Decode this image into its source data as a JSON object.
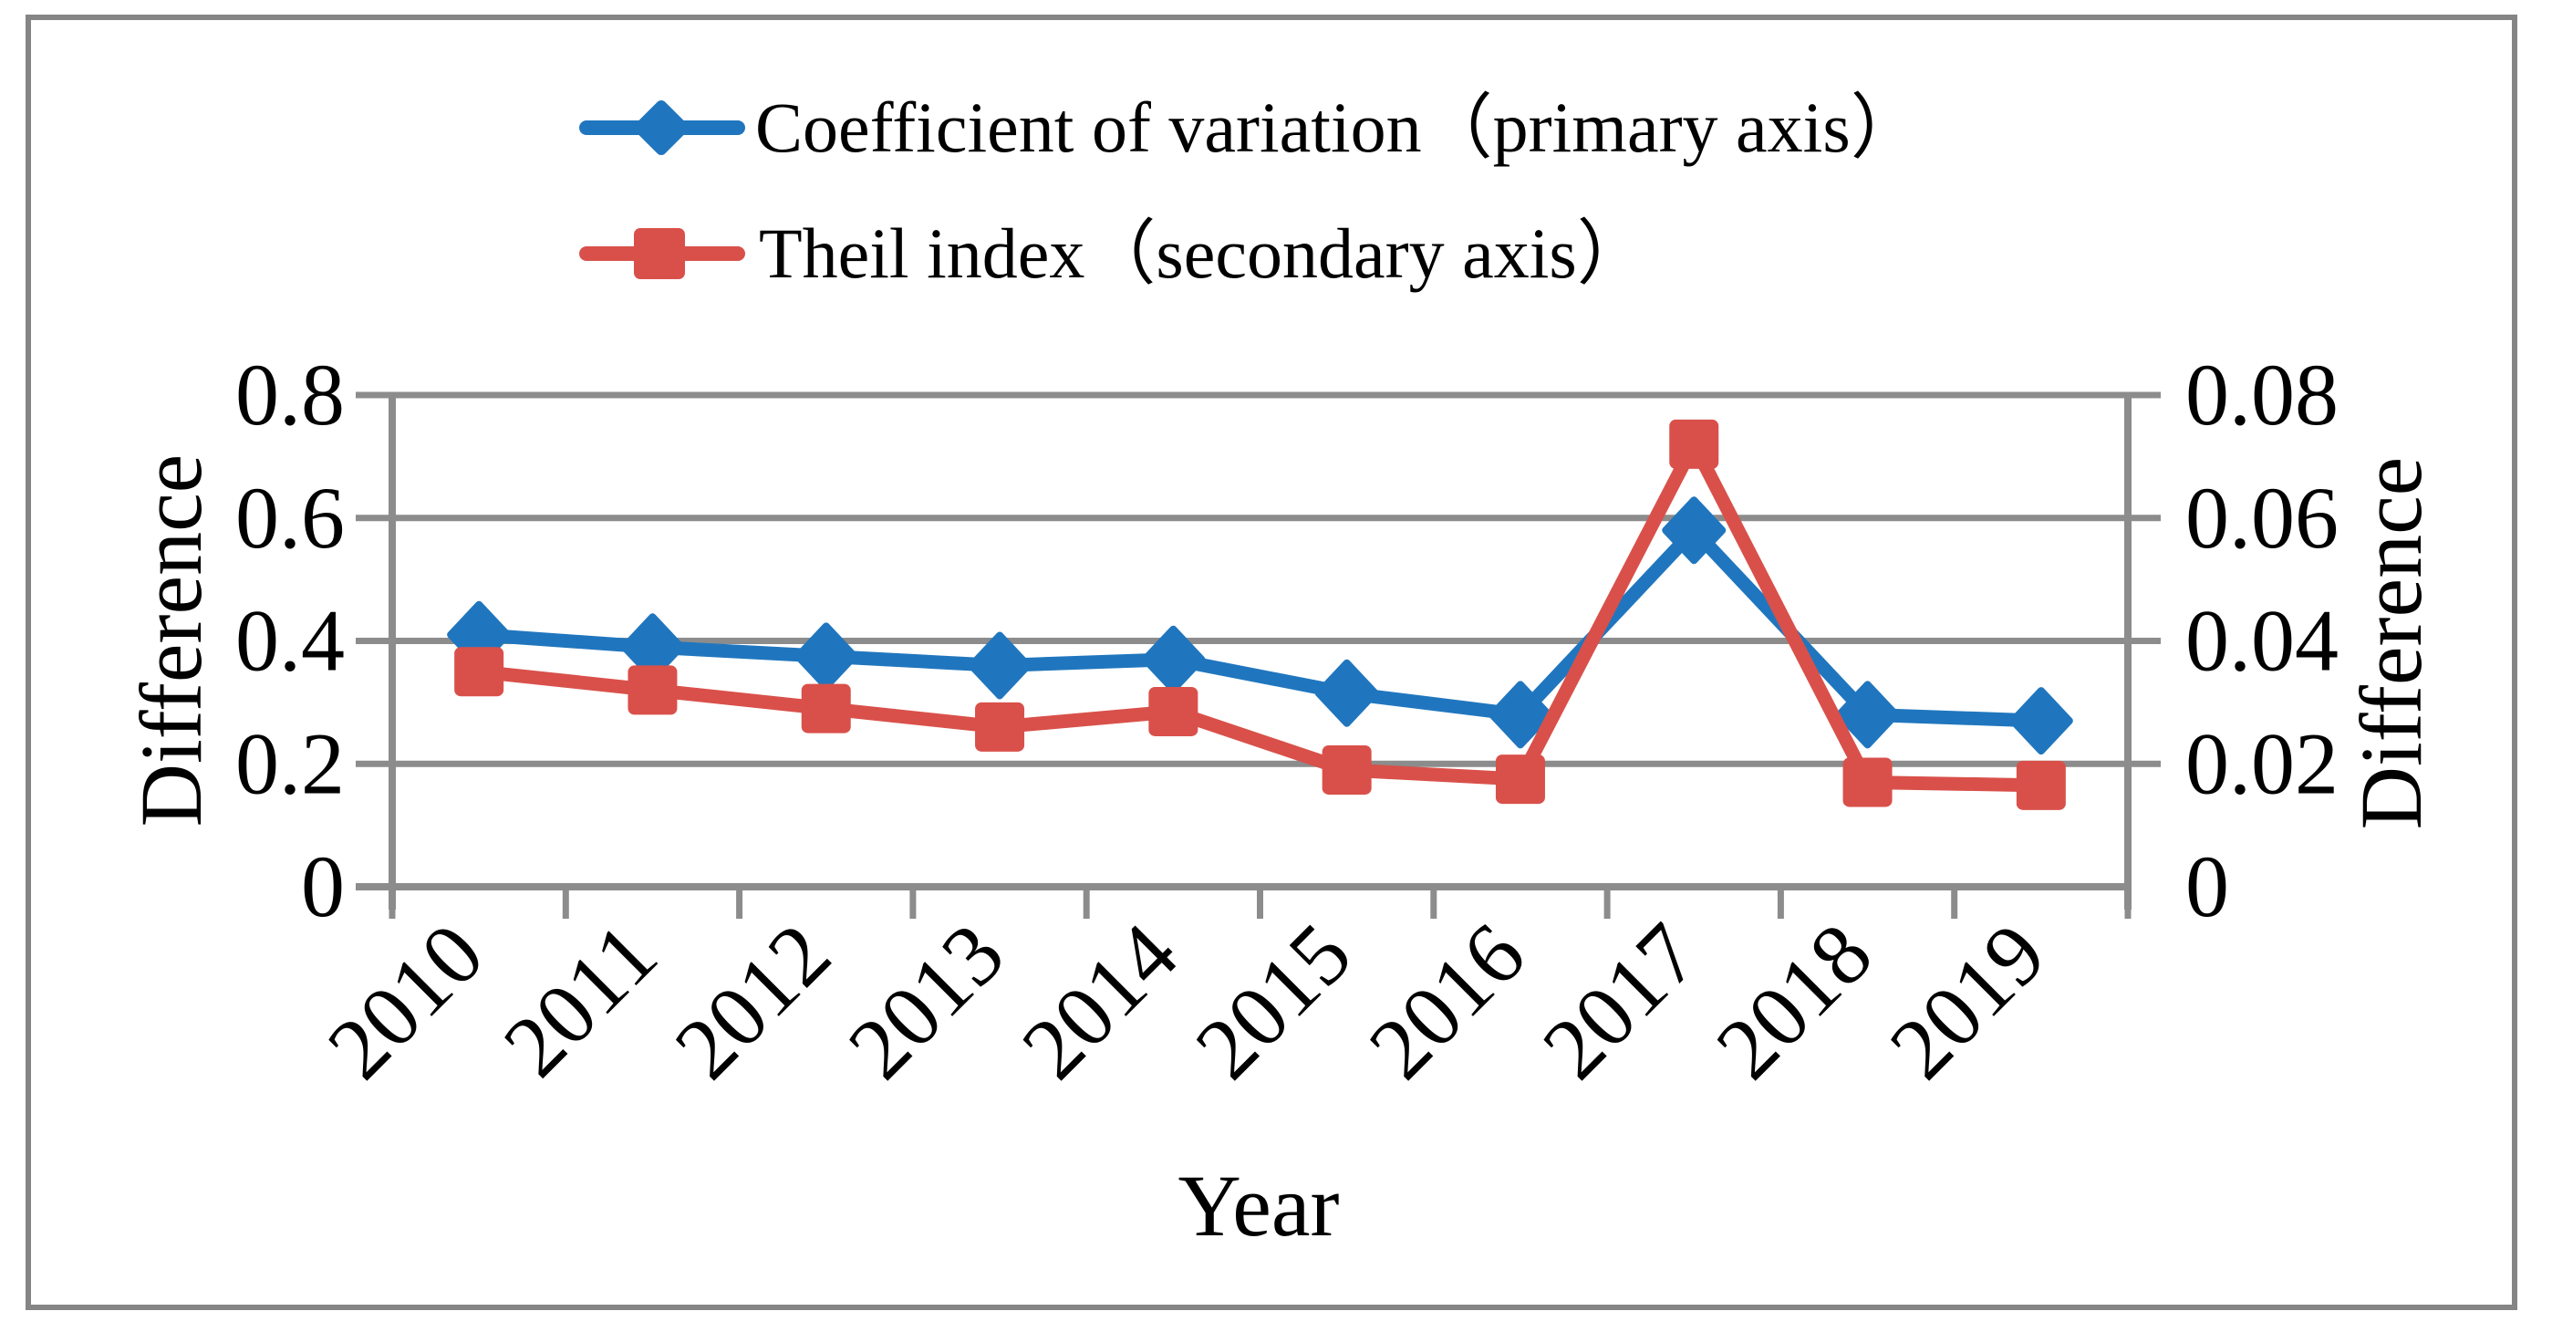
{
  "colors": {
    "grid": "#8C8C8C",
    "axis": "#8C8C8C",
    "frame": "#858585",
    "text": "#000000",
    "series_blue": "#2076BE",
    "series_red": "#D9504A"
  },
  "legend": {
    "position": "top"
  },
  "chart_data": {
    "type": "line",
    "title": "",
    "xlabel": "Year",
    "ylabel_left": "Difference",
    "ylabel_right": "Difference",
    "categories": [
      "2010",
      "2011",
      "2012",
      "2013",
      "2014",
      "2015",
      "2016",
      "2017",
      "2018",
      "2019"
    ],
    "x_tick_label_rotation": -45,
    "grid": "horizontal",
    "y_left": {
      "min": 0,
      "max": 0.8,
      "step": 0.2,
      "tick_labels": [
        "0.8",
        "0.6",
        "0.4",
        "0.2",
        "0"
      ]
    },
    "y_right": {
      "min": 0,
      "max": 0.08,
      "step": 0.02,
      "tick_labels": [
        "0.08",
        "0.06",
        "0.04",
        "0.02",
        "0"
      ]
    },
    "series": [
      {
        "name": "Coefficient of variation（primary axis）",
        "axis": "primary",
        "marker": "diamond",
        "color": "#2076BE",
        "values": [
          0.41,
          0.39,
          0.375,
          0.36,
          0.37,
          0.315,
          0.28,
          0.58,
          0.28,
          0.27
        ]
      },
      {
        "name": "Theil index（secondary axis）",
        "axis": "secondary",
        "marker": "square",
        "color": "#D9504A",
        "values": [
          0.035,
          0.032,
          0.029,
          0.026,
          0.0285,
          0.019,
          0.0175,
          0.072,
          0.017,
          0.0165
        ]
      }
    ]
  }
}
